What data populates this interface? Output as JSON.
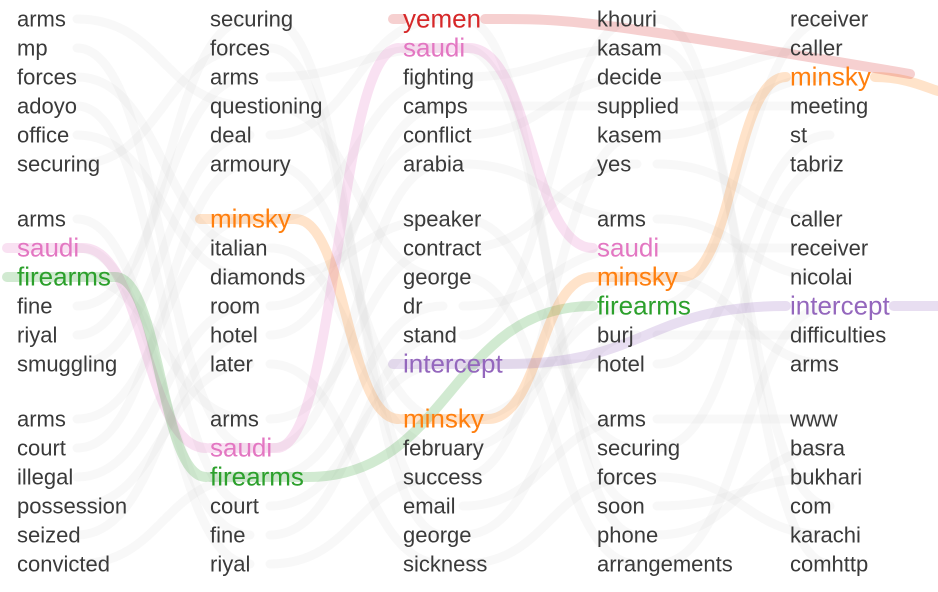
{
  "colors": {
    "yemen": "#d62728",
    "saudi": "#e377c2",
    "firearms": "#2ca02c",
    "minsky": "#ff7f0e",
    "intercept": "#9467bd",
    "default_text": "#3a3a3a",
    "background_flow": "#d8d8d8"
  },
  "highlights": [
    "yemen",
    "saudi",
    "firearms",
    "minsky",
    "intercept"
  ],
  "columns": [
    {
      "topics": [
        {
          "words": [
            "arms",
            "mp",
            "forces",
            "adoyo",
            "office",
            "securing"
          ]
        },
        {
          "words": [
            "arms",
            "saudi",
            "firearms",
            "fine",
            "riyal",
            "smuggling"
          ]
        },
        {
          "words": [
            "arms",
            "court",
            "illegal",
            "possession",
            "seized",
            "convicted"
          ]
        }
      ]
    },
    {
      "topics": [
        {
          "words": [
            "securing",
            "forces",
            "arms",
            "questioning",
            "deal",
            "armoury"
          ]
        },
        {
          "words": [
            "minsky",
            "italian",
            "diamonds",
            "room",
            "hotel",
            "later"
          ]
        },
        {
          "words": [
            "arms",
            "saudi",
            "firearms",
            "court",
            "fine",
            "riyal"
          ]
        }
      ]
    },
    {
      "topics": [
        {
          "words": [
            "yemen",
            "saudi",
            "fighting",
            "camps",
            "conflict",
            "arabia"
          ]
        },
        {
          "words": [
            "speaker",
            "contract",
            "george",
            "dr",
            "stand",
            "intercept"
          ]
        },
        {
          "words": [
            "minsky",
            "february",
            "success",
            "email",
            "george",
            "sickness"
          ]
        }
      ]
    },
    {
      "topics": [
        {
          "words": [
            "khouri",
            "kasam",
            "decide",
            "supplied",
            "kasem",
            "yes"
          ]
        },
        {
          "words": [
            "arms",
            "saudi",
            "minsky",
            "firearms",
            "burj",
            "hotel"
          ]
        },
        {
          "words": [
            "arms",
            "securing",
            "forces",
            "soon",
            "phone",
            "arrangements"
          ]
        }
      ]
    },
    {
      "topics": [
        {
          "words": [
            "receiver",
            "caller",
            "minsky",
            "meeting",
            "st",
            "tabriz"
          ]
        },
        {
          "words": [
            "caller",
            "receiver",
            "nicolai",
            "intercept",
            "difficulties",
            "arms"
          ]
        },
        {
          "words": [
            "www",
            "basra",
            "bukhari",
            "com",
            "karachi",
            "comhttp"
          ]
        }
      ]
    }
  ]
}
